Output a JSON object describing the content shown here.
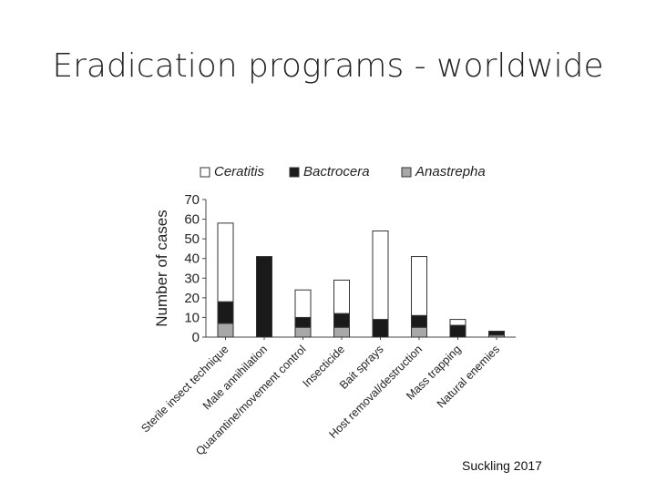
{
  "slide": {
    "title": "Eradication programs - worldwide",
    "citation": "Suckling 2017"
  },
  "chart_data": {
    "type": "bar",
    "stacked": true,
    "title": "",
    "xlabel": "",
    "ylabel": "Number of cases",
    "ylim": [
      0,
      70
    ],
    "yticks": [
      0,
      10,
      20,
      30,
      40,
      50,
      60,
      70
    ],
    "categories": [
      "Sterile insect technique",
      "Male annihilation",
      "Quarantine/movement control",
      "Insecticide",
      "Bait sprays",
      "Host removal/destruction",
      "Mass trapping",
      "Natural enemies"
    ],
    "series": [
      {
        "name": "Anastrepha",
        "color": "#a8a8a8",
        "values": [
          7,
          0,
          5,
          5,
          0,
          5,
          0,
          1
        ]
      },
      {
        "name": "Bactrocera",
        "color": "#1a1a1a",
        "values": [
          11,
          41,
          5,
          7,
          9,
          6,
          6,
          2
        ]
      },
      {
        "name": "Ceratitis",
        "color": "#ffffff",
        "values": [
          40,
          0,
          14,
          17,
          45,
          30,
          3,
          0
        ]
      }
    ],
    "legend": {
      "placement": "top",
      "order": [
        "Ceratitis",
        "Bactrocera",
        "Anastrepha"
      ]
    }
  }
}
